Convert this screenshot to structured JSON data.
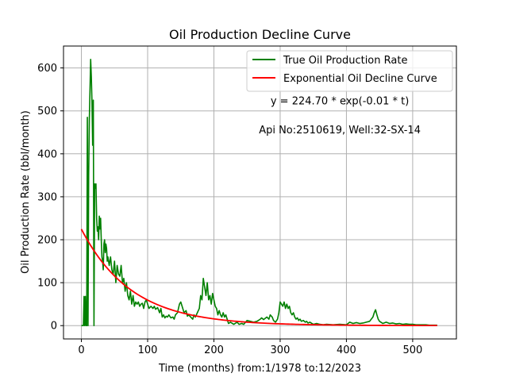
{
  "chart_data": {
    "type": "line",
    "title": "Oil Production Decline Curve",
    "xlabel": "Time (months) from:1/1978 to:12/2023",
    "ylabel": "Oil Production Rate (bbl/month)",
    "xlim": [
      -27,
      566
    ],
    "ylim": [
      -31,
      651
    ],
    "xticks": [
      0,
      100,
      200,
      300,
      400,
      500
    ],
    "yticks": [
      0,
      100,
      200,
      300,
      400,
      500,
      600
    ],
    "grid": true,
    "legend_position": "upper right",
    "annotations": [
      {
        "text": "y = 224.70 * exp(-0.01 * t)",
        "x": 390,
        "y": 515
      },
      {
        "text": "Api No:2510619, Well:32-SX-14",
        "x": 390,
        "y": 448
      }
    ],
    "series": [
      {
        "name": "True Oil Production Rate",
        "color": "#008000",
        "points": [
          [
            0,
            0
          ],
          [
            3,
            0
          ],
          [
            4,
            68
          ],
          [
            5,
            0
          ],
          [
            6,
            68
          ],
          [
            7,
            0
          ],
          [
            8,
            0
          ],
          [
            9,
            485
          ],
          [
            10,
            0
          ],
          [
            11,
            350
          ],
          [
            12,
            480
          ],
          [
            13,
            550
          ],
          [
            14,
            620
          ],
          [
            15,
            580
          ],
          [
            16,
            520
          ],
          [
            17,
            420
          ],
          [
            18,
            525
          ],
          [
            19,
            0
          ],
          [
            20,
            330
          ],
          [
            21,
            320
          ],
          [
            22,
            330
          ],
          [
            23,
            250
          ],
          [
            24,
            220
          ],
          [
            25,
            230
          ],
          [
            26,
            200
          ],
          [
            27,
            255
          ],
          [
            28,
            225
          ],
          [
            29,
            250
          ],
          [
            30,
            200
          ],
          [
            31,
            160
          ],
          [
            32,
            150
          ],
          [
            33,
            130
          ],
          [
            34,
            190
          ],
          [
            35,
            200
          ],
          [
            36,
            170
          ],
          [
            37,
            190
          ],
          [
            38,
            180
          ],
          [
            39,
            150
          ],
          [
            40,
            160
          ],
          [
            42,
            140
          ],
          [
            44,
            160
          ],
          [
            46,
            130
          ],
          [
            48,
            120
          ],
          [
            50,
            150
          ],
          [
            52,
            100
          ],
          [
            54,
            140
          ],
          [
            56,
            120
          ],
          [
            58,
            115
          ],
          [
            60,
            140
          ],
          [
            62,
            100
          ],
          [
            64,
            110
          ],
          [
            66,
            80
          ],
          [
            68,
            100
          ],
          [
            70,
            70
          ],
          [
            72,
            60
          ],
          [
            74,
            80
          ],
          [
            76,
            50
          ],
          [
            78,
            70
          ],
          [
            80,
            45
          ],
          [
            82,
            55
          ],
          [
            84,
            50
          ],
          [
            86,
            55
          ],
          [
            88,
            45
          ],
          [
            90,
            50
          ],
          [
            92,
            52
          ],
          [
            94,
            40
          ],
          [
            96,
            55
          ],
          [
            98,
            60
          ],
          [
            100,
            50
          ],
          [
            102,
            40
          ],
          [
            105,
            45
          ],
          [
            108,
            40
          ],
          [
            110,
            45
          ],
          [
            112,
            38
          ],
          [
            115,
            42
          ],
          [
            118,
            30
          ],
          [
            120,
            40
          ],
          [
            122,
            20
          ],
          [
            124,
            25
          ],
          [
            126,
            18
          ],
          [
            128,
            22
          ],
          [
            130,
            20
          ],
          [
            132,
            25
          ],
          [
            135,
            18
          ],
          [
            138,
            20
          ],
          [
            140,
            15
          ],
          [
            142,
            25
          ],
          [
            145,
            30
          ],
          [
            148,
            50
          ],
          [
            150,
            55
          ],
          [
            152,
            45
          ],
          [
            155,
            30
          ],
          [
            158,
            35
          ],
          [
            160,
            22
          ],
          [
            162,
            25
          ],
          [
            165,
            20
          ],
          [
            168,
            15
          ],
          [
            170,
            25
          ],
          [
            172,
            20
          ],
          [
            175,
            30
          ],
          [
            178,
            40
          ],
          [
            180,
            70
          ],
          [
            182,
            60
          ],
          [
            184,
            110
          ],
          [
            186,
            90
          ],
          [
            188,
            70
          ],
          [
            190,
            100
          ],
          [
            192,
            60
          ],
          [
            194,
            70
          ],
          [
            196,
            50
          ],
          [
            198,
            75
          ],
          [
            200,
            60
          ],
          [
            202,
            45
          ],
          [
            204,
            40
          ],
          [
            206,
            25
          ],
          [
            208,
            35
          ],
          [
            210,
            25
          ],
          [
            212,
            20
          ],
          [
            214,
            30
          ],
          [
            216,
            20
          ],
          [
            218,
            25
          ],
          [
            220,
            15
          ],
          [
            222,
            5
          ],
          [
            225,
            8
          ],
          [
            228,
            5
          ],
          [
            230,
            3
          ],
          [
            235,
            8
          ],
          [
            238,
            3
          ],
          [
            242,
            5
          ],
          [
            245,
            3
          ],
          [
            250,
            12
          ],
          [
            255,
            10
          ],
          [
            260,
            8
          ],
          [
            265,
            10
          ],
          [
            270,
            15
          ],
          [
            272,
            18
          ],
          [
            275,
            14
          ],
          [
            280,
            20
          ],
          [
            283,
            15
          ],
          [
            285,
            25
          ],
          [
            288,
            20
          ],
          [
            290,
            12
          ],
          [
            293,
            8
          ],
          [
            296,
            15
          ],
          [
            298,
            30
          ],
          [
            300,
            55
          ],
          [
            302,
            50
          ],
          [
            304,
            45
          ],
          [
            306,
            55
          ],
          [
            308,
            40
          ],
          [
            310,
            50
          ],
          [
            312,
            40
          ],
          [
            314,
            45
          ],
          [
            316,
            30
          ],
          [
            318,
            25
          ],
          [
            320,
            30
          ],
          [
            322,
            20
          ],
          [
            324,
            15
          ],
          [
            326,
            18
          ],
          [
            328,
            12
          ],
          [
            330,
            15
          ],
          [
            332,
            10
          ],
          [
            335,
            12
          ],
          [
            338,
            8
          ],
          [
            340,
            10
          ],
          [
            342,
            6
          ],
          [
            345,
            8
          ],
          [
            348,
            5
          ],
          [
            350,
            3
          ],
          [
            355,
            5
          ],
          [
            360,
            3
          ],
          [
            365,
            2
          ],
          [
            370,
            3
          ],
          [
            380,
            2
          ],
          [
            390,
            3
          ],
          [
            400,
            2
          ],
          [
            405,
            8
          ],
          [
            410,
            5
          ],
          [
            415,
            7
          ],
          [
            420,
            5
          ],
          [
            425,
            6
          ],
          [
            430,
            8
          ],
          [
            435,
            10
          ],
          [
            440,
            20
          ],
          [
            442,
            30
          ],
          [
            444,
            37
          ],
          [
            446,
            25
          ],
          [
            448,
            15
          ],
          [
            450,
            10
          ],
          [
            455,
            5
          ],
          [
            460,
            8
          ],
          [
            465,
            5
          ],
          [
            470,
            6
          ],
          [
            475,
            4
          ],
          [
            480,
            5
          ],
          [
            485,
            3
          ],
          [
            490,
            4
          ],
          [
            495,
            3
          ],
          [
            500,
            3
          ],
          [
            505,
            2
          ],
          [
            510,
            2
          ],
          [
            515,
            2
          ],
          [
            520,
            2
          ],
          [
            525,
            1
          ],
          [
            530,
            1
          ],
          [
            535,
            1
          ],
          [
            537,
            1
          ]
        ]
      },
      {
        "name": "Exponential Oil Decline Curve",
        "color": "#ff0000",
        "model": {
          "a": 224.7,
          "k": 0.0133,
          "x_start": 0,
          "x_end": 537,
          "step": 3
        }
      }
    ]
  }
}
